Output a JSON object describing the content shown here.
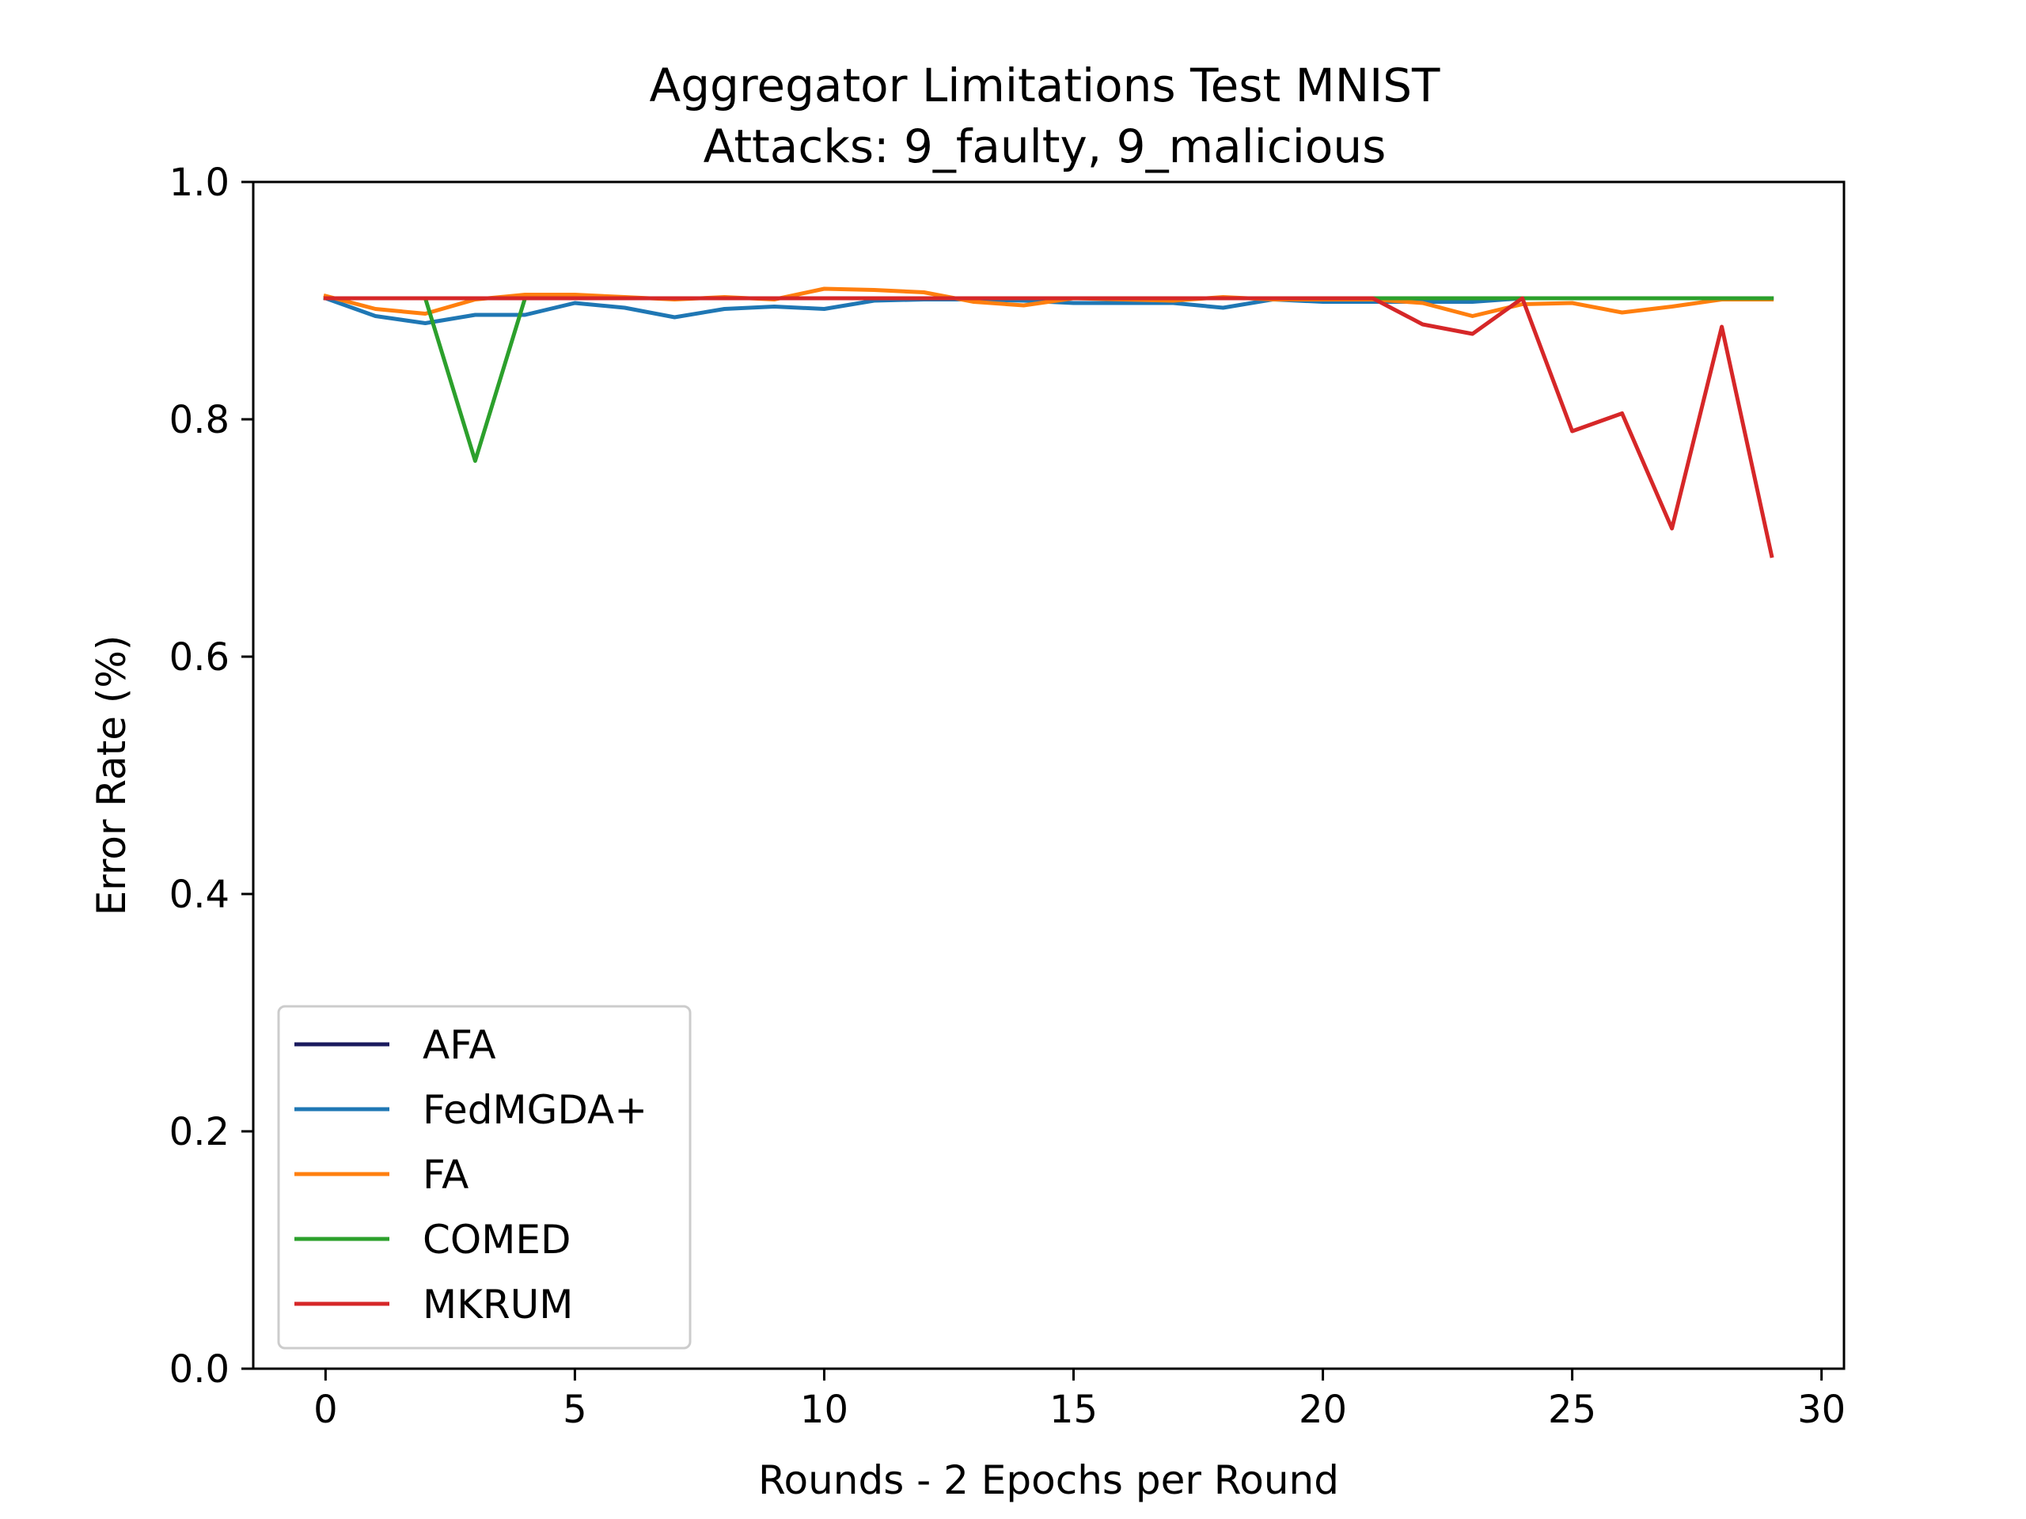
{
  "chart_data": {
    "type": "line",
    "title": "Aggregator Limitations Test MNIST",
    "subtitle": "Attacks: 9_faulty, 9_malicious",
    "xlabel": "Rounds - 2 Epochs per Round",
    "ylabel": "Error Rate (%)",
    "xlim": [
      -1.45,
      30.45
    ],
    "ylim": [
      0,
      1
    ],
    "xticks": [
      0,
      5,
      10,
      15,
      20,
      25,
      30
    ],
    "yticks": [
      0.0,
      0.2,
      0.4,
      0.6,
      0.8,
      1.0
    ],
    "xtick_labels": [
      "0",
      "5",
      "10",
      "15",
      "20",
      "25",
      "30"
    ],
    "ytick_labels": [
      "0.0",
      "0.2",
      "0.4",
      "0.6",
      "0.8",
      "1.0"
    ],
    "grid": false,
    "legend_position": "lower-left",
    "x": [
      0,
      1,
      2,
      3,
      4,
      5,
      6,
      7,
      8,
      9,
      10,
      11,
      12,
      13,
      14,
      15,
      16,
      17,
      18,
      19,
      20,
      21,
      22,
      23,
      24,
      25,
      26,
      27,
      28,
      29
    ],
    "series": [
      {
        "name": "AFA",
        "color": "#1a1a5e",
        "values": [
          0.902,
          0.902,
          0.902,
          0.902,
          0.902,
          0.902,
          0.902,
          0.902,
          0.902,
          0.902,
          0.902,
          0.902,
          0.902,
          0.902,
          0.902,
          0.902,
          0.902,
          0.902,
          0.902,
          0.902,
          0.902,
          0.902,
          0.902,
          0.902,
          0.902,
          0.902,
          0.902,
          0.902,
          0.902,
          0.902
        ]
      },
      {
        "name": "FedMGDA+",
        "color": "#1f77b4",
        "values": [
          0.902,
          0.887,
          0.881,
          0.888,
          0.888,
          0.898,
          0.894,
          0.886,
          0.893,
          0.895,
          0.893,
          0.9,
          0.901,
          0.901,
          0.9,
          0.898,
          0.898,
          0.898,
          0.894,
          0.901,
          0.899,
          0.899,
          0.899,
          0.899,
          0.902,
          0.902,
          0.902,
          0.902,
          0.902,
          0.902
        ]
      },
      {
        "name": "FA",
        "color": "#ff7f0e",
        "values": [
          0.904,
          0.893,
          0.889,
          0.901,
          0.905,
          0.905,
          0.903,
          0.901,
          0.903,
          0.901,
          0.91,
          0.909,
          0.907,
          0.899,
          0.896,
          0.902,
          0.901,
          0.9,
          0.903,
          0.901,
          0.901,
          0.901,
          0.898,
          0.887,
          0.897,
          0.898,
          0.89,
          0.895,
          0.901,
          0.901
        ]
      },
      {
        "name": "COMED",
        "color": "#2ca02c",
        "values": [
          0.902,
          0.902,
          0.902,
          0.765,
          0.902,
          0.902,
          0.902,
          0.902,
          0.902,
          0.902,
          0.902,
          0.902,
          0.902,
          0.902,
          0.902,
          0.902,
          0.902,
          0.902,
          0.902,
          0.902,
          0.902,
          0.902,
          0.902,
          0.902,
          0.902,
          0.902,
          0.902,
          0.902,
          0.902,
          0.902
        ]
      },
      {
        "name": "MKRUM",
        "color": "#d62728",
        "values": [
          0.902,
          0.902,
          0.902,
          0.902,
          0.902,
          0.902,
          0.902,
          0.902,
          0.902,
          0.902,
          0.902,
          0.902,
          0.902,
          0.902,
          0.902,
          0.902,
          0.902,
          0.902,
          0.902,
          0.902,
          0.902,
          0.902,
          0.88,
          0.872,
          0.902,
          0.79,
          0.805,
          0.708,
          0.878,
          0.685
        ]
      }
    ]
  }
}
